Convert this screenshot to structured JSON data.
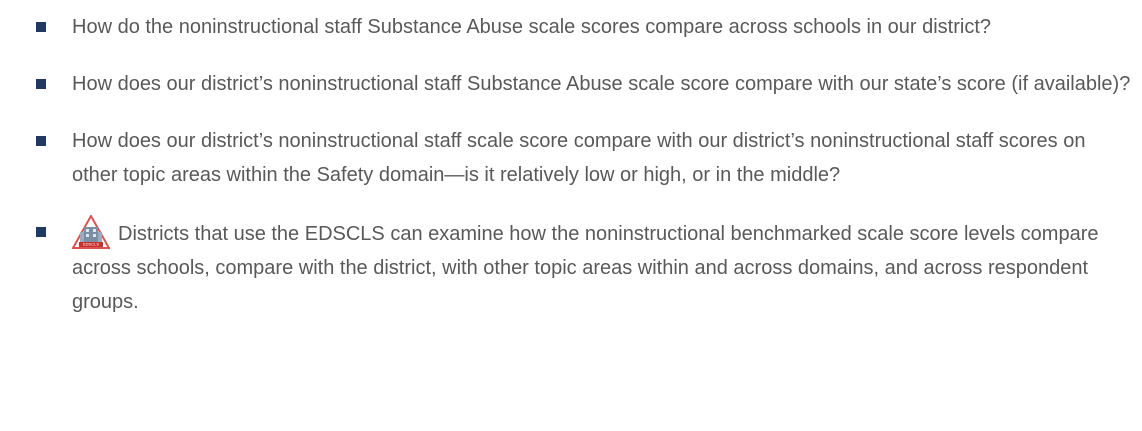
{
  "list": {
    "items": [
      {
        "text": "How do the noninstructional staff Substance Abuse scale scores compare across schools in our district?"
      },
      {
        "text": "How does our district’s noninstructional staff Substance Abuse scale score compare with our state’s score (if available)?"
      },
      {
        "text": "How does our district’s noninstructional staff scale score compare with our district’s noninstructional staff scores on other topic areas within the Safety domain—is it relatively low or high, or in the middle?"
      },
      {
        "icon_label": "EDSCLS",
        "text": "Districts that use the EDSCLS can examine how the noninstructional benchmarked scale score levels compare across schools, compare with the district, with other topic areas within and across domains, and across respondent groups."
      }
    ]
  }
}
